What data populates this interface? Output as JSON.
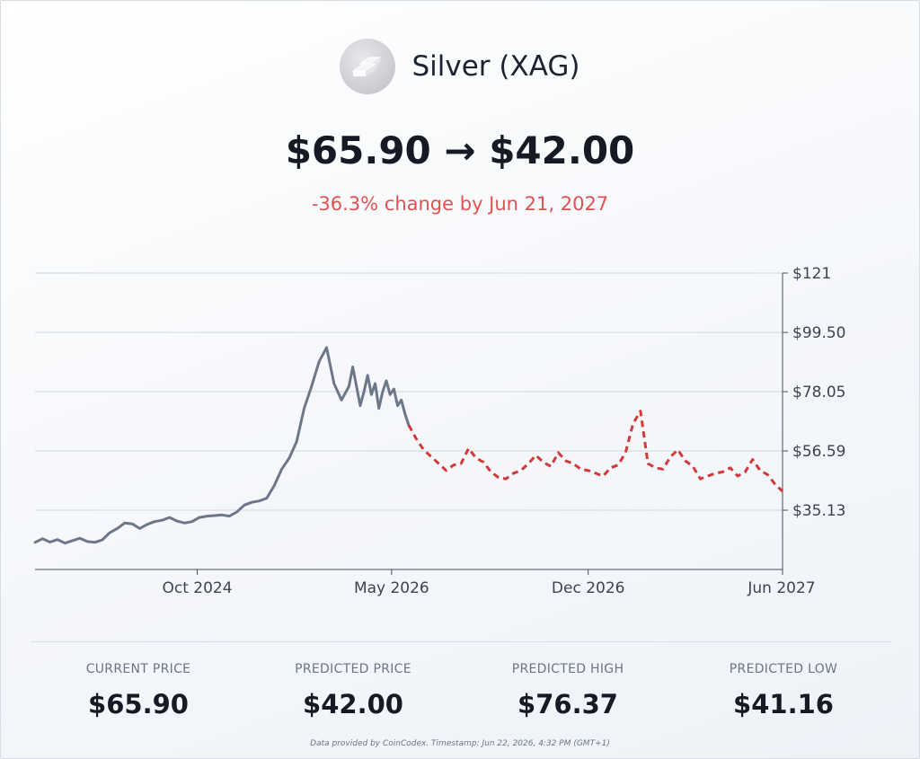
{
  "header": {
    "asset_name": "Silver (XAG)",
    "logo_icon": "silver-bars-icon",
    "price_change": "$65.90 → $42.00",
    "change_text": "-36.3% change by Jun 21, 2027",
    "change_color": "#e05252"
  },
  "chart_data": {
    "type": "line",
    "x_tick_labels": [
      "Oct 2024",
      "May 2026",
      "Dec 2026",
      "Jun 2027"
    ],
    "y_tick_labels": [
      "$121",
      "$99.50",
      "$78.05",
      "$56.59",
      "$35.13"
    ],
    "ylim": [
      13.67,
      121
    ],
    "grid": true,
    "series": [
      {
        "style": "solid",
        "color": "#6e7789",
        "x": [
          0,
          0.01,
          0.02,
          0.03,
          0.04,
          0.05,
          0.06,
          0.07,
          0.08,
          0.09,
          0.1,
          0.11,
          0.12,
          0.13,
          0.14,
          0.15,
          0.16,
          0.17,
          0.18,
          0.19,
          0.2,
          0.21,
          0.22,
          0.23,
          0.24,
          0.25,
          0.26,
          0.27,
          0.28,
          0.29,
          0.3,
          0.31,
          0.32,
          0.33,
          0.34,
          0.35,
          0.36,
          0.37,
          0.38,
          0.39,
          0.4,
          0.41,
          0.42,
          0.425,
          0.43,
          0.435,
          0.44,
          0.445,
          0.45,
          0.455,
          0.46,
          0.465,
          0.47,
          0.475,
          0.48,
          0.485,
          0.49,
          0.495,
          0.5
        ],
        "y": [
          23.5,
          24.8,
          23.6,
          24.5,
          23.2,
          24.1,
          25.0,
          23.8,
          23.5,
          24.4,
          27.0,
          28.5,
          30.5,
          30.2,
          28.5,
          30.0,
          31.0,
          31.5,
          32.5,
          31.2,
          30.5,
          31.0,
          32.5,
          33.0,
          33.2,
          33.4,
          33.0,
          34.5,
          37.0,
          38.0,
          38.5,
          39.5,
          44.0,
          50.0,
          54.0,
          60.0,
          72.0,
          80.0,
          89.0,
          94.0,
          81.0,
          75.0,
          80.0,
          87.0,
          80.0,
          73.0,
          78.0,
          84.0,
          77.0,
          81.0,
          72.0,
          78.0,
          82.0,
          77.0,
          79.0,
          73.0,
          75.0,
          70.0,
          65.9
        ]
      },
      {
        "style": "dashed",
        "color": "#d23a3a",
        "x": [
          0.5,
          0.51,
          0.52,
          0.53,
          0.54,
          0.55,
          0.56,
          0.57,
          0.58,
          0.59,
          0.6,
          0.61,
          0.62,
          0.63,
          0.64,
          0.65,
          0.66,
          0.67,
          0.68,
          0.69,
          0.7,
          0.71,
          0.72,
          0.73,
          0.74,
          0.75,
          0.76,
          0.77,
          0.78,
          0.79,
          0.8,
          0.81,
          0.82,
          0.83,
          0.84,
          0.85,
          0.86,
          0.87,
          0.88,
          0.89,
          0.9,
          0.91,
          0.92,
          0.93,
          0.94,
          0.95,
          0.96,
          0.97,
          0.98,
          0.99,
          1.0
        ],
        "y": [
          65.9,
          61.0,
          57.0,
          54.5,
          52.0,
          49.5,
          51.5,
          52.0,
          57.5,
          54.0,
          52.5,
          49.0,
          47.0,
          46.5,
          48.5,
          49.5,
          52.0,
          55.0,
          52.5,
          51.0,
          56.0,
          53.0,
          52.0,
          50.0,
          49.5,
          48.5,
          47.5,
          50.5,
          51.5,
          56.0,
          66.5,
          71.0,
          52.0,
          50.5,
          50.0,
          54.5,
          57.0,
          53.0,
          51.0,
          46.5,
          47.5,
          48.5,
          49.0,
          50.5,
          47.5,
          49.0,
          53.5,
          49.5,
          48.0,
          44.5,
          42.0
        ]
      }
    ]
  },
  "stats": [
    {
      "label": "CURRENT PRICE",
      "value": "$65.90"
    },
    {
      "label": "PREDICTED PRICE",
      "value": "$42.00"
    },
    {
      "label": "PREDICTED HIGH",
      "value": "$76.37"
    },
    {
      "label": "PREDICTED LOW",
      "value": "$41.16"
    }
  ],
  "footnote": "Data provided by CoinCodex. Timestamp: Jun 22, 2026, 4:32 PM (GMT+1)"
}
